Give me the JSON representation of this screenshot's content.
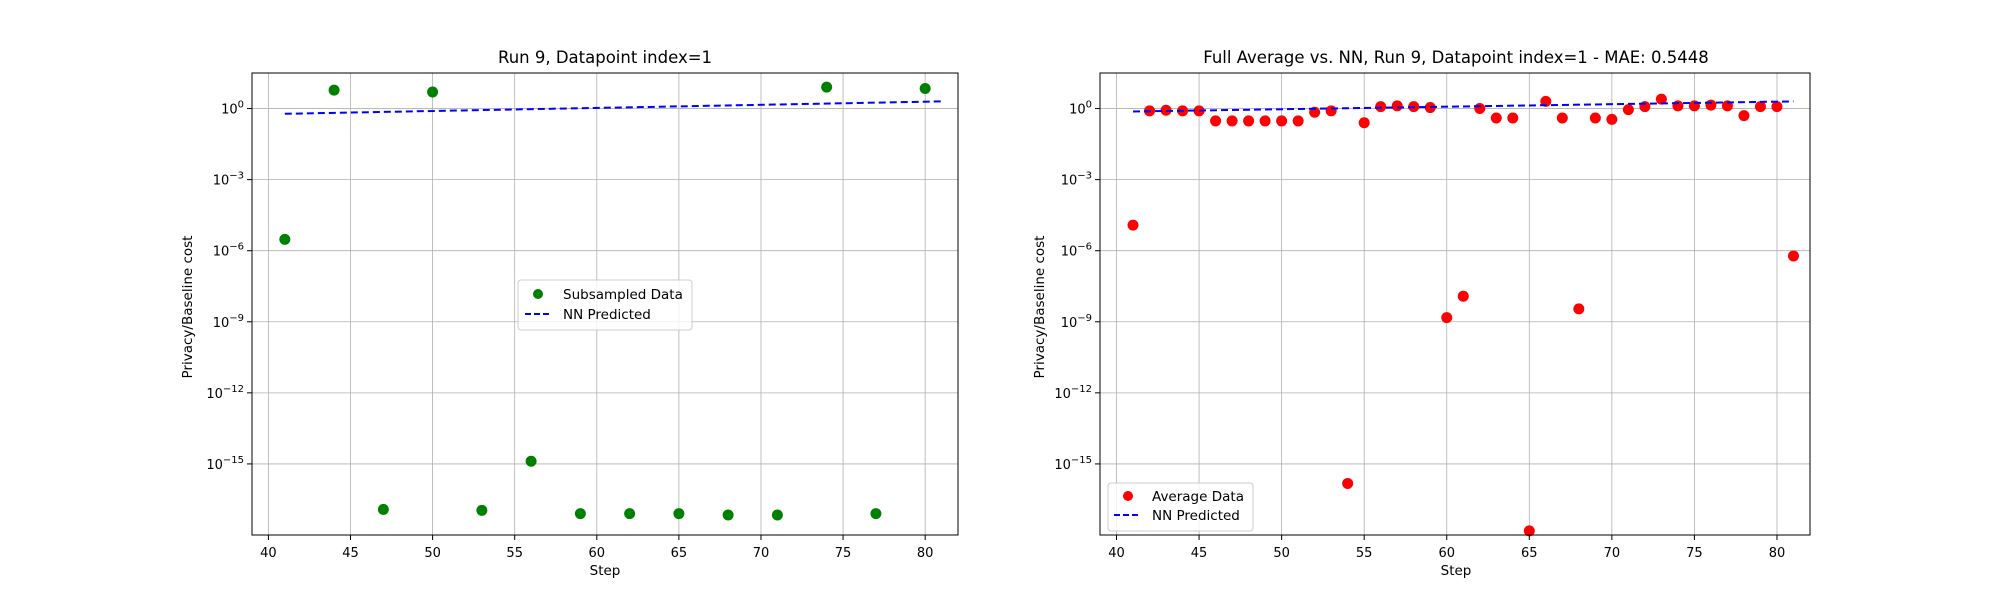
{
  "chart_data": [
    {
      "type": "scatter",
      "title": "Run 9, Datapoint index=1",
      "xlabel": "Step",
      "ylabel": "Privacy/Baseline cost",
      "yscale": "log",
      "xlim": [
        39,
        82
      ],
      "ylim_exp": [
        -18.0,
        1.5
      ],
      "xticks": [
        40,
        45,
        50,
        55,
        60,
        65,
        70,
        75,
        80
      ],
      "yticks_exp": [
        0,
        -3,
        -6,
        -9,
        -12,
        -15
      ],
      "ytick_labels": [
        "10^0",
        "10^-3",
        "10^-6",
        "10^-9",
        "10^-12",
        "10^-15"
      ],
      "grid": true,
      "legend_position": "center",
      "series": [
        {
          "name": "Subsampled Data",
          "kind": "scatter",
          "color": "#008000",
          "points": [
            {
              "x": 41,
              "y": 3e-06
            },
            {
              "x": 44,
              "y": 6.0
            },
            {
              "x": 47,
              "y": 1.2e-17
            },
            {
              "x": 50,
              "y": 5.0
            },
            {
              "x": 53,
              "y": 1.1e-17
            },
            {
              "x": 56,
              "y": 1.3e-15
            },
            {
              "x": 59,
              "y": 8e-18
            },
            {
              "x": 62,
              "y": 8e-18
            },
            {
              "x": 65,
              "y": 8e-18
            },
            {
              "x": 68,
              "y": 7e-18
            },
            {
              "x": 71,
              "y": 7e-18
            },
            {
              "x": 74,
              "y": 8.0
            },
            {
              "x": 77,
              "y": 8e-18
            },
            {
              "x": 80,
              "y": 7.0
            }
          ]
        },
        {
          "name": "NN Predicted",
          "kind": "line",
          "style": "dashed",
          "color": "#0000ff",
          "points": [
            {
              "x": 41,
              "y": 0.6
            },
            {
              "x": 81,
              "y": 2.0
            }
          ]
        }
      ]
    },
    {
      "type": "scatter",
      "title": "Full Average vs. NN, Run 9, Datapoint index=1 - MAE: 0.5448",
      "xlabel": "Step",
      "ylabel": "Privacy/Baseline cost",
      "yscale": "log",
      "xlim": [
        39,
        82
      ],
      "ylim_exp": [
        -18.0,
        1.5
      ],
      "xticks": [
        40,
        45,
        50,
        55,
        60,
        65,
        70,
        75,
        80
      ],
      "yticks_exp": [
        0,
        -3,
        -6,
        -9,
        -12,
        -15
      ],
      "ytick_labels": [
        "10^0",
        "10^-3",
        "10^-6",
        "10^-9",
        "10^-12",
        "10^-15"
      ],
      "grid": true,
      "legend_position": "lower left",
      "series": [
        {
          "name": "Average Data",
          "kind": "scatter",
          "color": "#ff0000",
          "points": [
            {
              "x": 41,
              "y": 1.2e-05
            },
            {
              "x": 42,
              "y": 0.8
            },
            {
              "x": 43,
              "y": 0.85
            },
            {
              "x": 44,
              "y": 0.8
            },
            {
              "x": 45,
              "y": 0.8
            },
            {
              "x": 46,
              "y": 0.3
            },
            {
              "x": 47,
              "y": 0.3
            },
            {
              "x": 48,
              "y": 0.3
            },
            {
              "x": 49,
              "y": 0.3
            },
            {
              "x": 50,
              "y": 0.3
            },
            {
              "x": 51,
              "y": 0.3
            },
            {
              "x": 52,
              "y": 0.7
            },
            {
              "x": 53,
              "y": 0.8
            },
            {
              "x": 54,
              "y": 1.5e-16
            },
            {
              "x": 55,
              "y": 0.25
            },
            {
              "x": 56,
              "y": 1.2
            },
            {
              "x": 57,
              "y": 1.3
            },
            {
              "x": 58,
              "y": 1.2
            },
            {
              "x": 59,
              "y": 1.1
            },
            {
              "x": 60,
              "y": 1.5e-09
            },
            {
              "x": 61,
              "y": 1.2e-08
            },
            {
              "x": 62,
              "y": 1.0
            },
            {
              "x": 63,
              "y": 0.4
            },
            {
              "x": 64,
              "y": 0.4
            },
            {
              "x": 65,
              "y": 1.5e-18
            },
            {
              "x": 66,
              "y": 2.0
            },
            {
              "x": 67,
              "y": 0.4
            },
            {
              "x": 68,
              "y": 3.5e-09
            },
            {
              "x": 69,
              "y": 0.4
            },
            {
              "x": 70,
              "y": 0.35
            },
            {
              "x": 71,
              "y": 0.9
            },
            {
              "x": 72,
              "y": 1.2
            },
            {
              "x": 73,
              "y": 2.5
            },
            {
              "x": 74,
              "y": 1.3
            },
            {
              "x": 75,
              "y": 1.3
            },
            {
              "x": 76,
              "y": 1.4
            },
            {
              "x": 77,
              "y": 1.3
            },
            {
              "x": 78,
              "y": 0.5
            },
            {
              "x": 79,
              "y": 1.2
            },
            {
              "x": 80,
              "y": 1.2
            },
            {
              "x": 81,
              "y": 6e-07
            }
          ]
        },
        {
          "name": "NN Predicted",
          "kind": "line",
          "style": "dashed",
          "color": "#0000ff",
          "points": [
            {
              "x": 41,
              "y": 0.75
            },
            {
              "x": 81,
              "y": 2.0
            }
          ]
        }
      ]
    }
  ]
}
